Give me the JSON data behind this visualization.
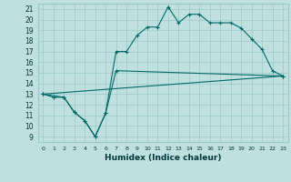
{
  "title": "",
  "xlabel": "Humidex (Indice chaleur)",
  "bg_color": "#c0e0e0",
  "line_color": "#006868",
  "grid_color": "#98c8c8",
  "xlim": [
    -0.5,
    23.5
  ],
  "ylim": [
    8.5,
    21.5
  ],
  "xticks": [
    0,
    1,
    2,
    3,
    4,
    5,
    6,
    7,
    8,
    9,
    10,
    11,
    12,
    13,
    14,
    15,
    16,
    17,
    18,
    19,
    20,
    21,
    22,
    23
  ],
  "yticks": [
    9,
    10,
    11,
    12,
    13,
    14,
    15,
    16,
    17,
    18,
    19,
    20,
    21
  ],
  "line1_x": [
    0,
    1,
    2,
    3,
    4,
    5,
    6,
    7,
    8,
    9,
    10,
    11,
    12,
    13,
    14,
    15,
    16,
    17,
    18,
    19,
    20,
    21,
    22,
    23
  ],
  "line1_y": [
    13,
    12.7,
    12.7,
    11.3,
    10.5,
    9.0,
    11.2,
    17.0,
    17.0,
    18.5,
    19.3,
    19.3,
    21.2,
    19.7,
    20.5,
    20.5,
    19.7,
    19.7,
    19.7,
    19.2,
    18.2,
    17.2,
    15.2,
    14.7
  ],
  "line2_x": [
    0,
    2,
    3,
    4,
    5,
    6,
    7,
    23
  ],
  "line2_y": [
    13,
    12.7,
    11.3,
    10.5,
    9.0,
    11.2,
    15.2,
    14.7
  ],
  "line3_x": [
    0,
    23
  ],
  "line3_y": [
    13,
    14.7
  ]
}
